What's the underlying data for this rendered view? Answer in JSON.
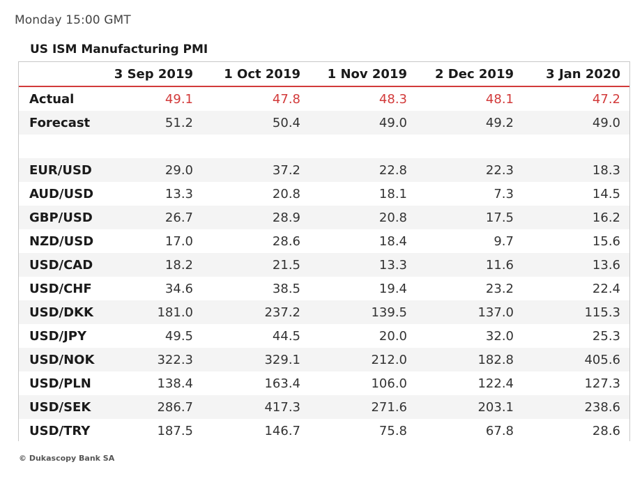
{
  "header": {
    "time_label": "Monday 15:00 GMT",
    "title": "US ISM Manufacturing PMI"
  },
  "table": {
    "columns": [
      "",
      "3 Sep 2019",
      "1 Oct 2019",
      "1 Nov 2019",
      "2 Dec 2019",
      "3 Jan 2020"
    ],
    "rows": [
      {
        "label": "Actual",
        "values": [
          "49.1",
          "47.8",
          "48.3",
          "48.1",
          "47.2"
        ]
      },
      {
        "label": "Forecast",
        "values": [
          "51.2",
          "50.4",
          "49.0",
          "49.2",
          "49.0"
        ]
      },
      {
        "label": "",
        "values": [
          "",
          "",
          "",
          "",
          ""
        ]
      },
      {
        "label": "EUR/USD",
        "values": [
          "29.0",
          "37.2",
          "22.8",
          "22.3",
          "18.3"
        ]
      },
      {
        "label": "AUD/USD",
        "values": [
          "13.3",
          "20.8",
          "18.1",
          "7.3",
          "14.5"
        ]
      },
      {
        "label": "GBP/USD",
        "values": [
          "26.7",
          "28.9",
          "20.8",
          "17.5",
          "16.2"
        ]
      },
      {
        "label": "NZD/USD",
        "values": [
          "17.0",
          "28.6",
          "18.4",
          "9.7",
          "15.6"
        ]
      },
      {
        "label": "USD/CAD",
        "values": [
          "18.2",
          "21.5",
          "13.3",
          "11.6",
          "13.6"
        ]
      },
      {
        "label": "USD/CHF",
        "values": [
          "34.6",
          "38.5",
          "19.4",
          "23.2",
          "22.4"
        ]
      },
      {
        "label": "USD/DKK",
        "values": [
          "181.0",
          "237.2",
          "139.5",
          "137.0",
          "115.3"
        ]
      },
      {
        "label": "USD/JPY",
        "values": [
          "49.5",
          "44.5",
          "20.0",
          "32.0",
          "25.3"
        ]
      },
      {
        "label": "USD/NOK",
        "values": [
          "322.3",
          "329.1",
          "212.0",
          "182.8",
          "405.6"
        ]
      },
      {
        "label": "USD/PLN",
        "values": [
          "138.4",
          "163.4",
          "106.0",
          "122.4",
          "127.3"
        ]
      },
      {
        "label": "USD/SEK",
        "values": [
          "286.7",
          "417.3",
          "271.6",
          "203.1",
          "238.6"
        ]
      },
      {
        "label": "USD/TRY",
        "values": [
          "187.5",
          "146.7",
          "75.8",
          "67.8",
          "28.6"
        ]
      }
    ]
  },
  "footer": {
    "copyright": "© Dukascopy Bank SA"
  },
  "colors": {
    "accent_red": "#d23a3a",
    "stripe_gray": "#f4f4f4",
    "border_gray": "#c8c8c8"
  }
}
